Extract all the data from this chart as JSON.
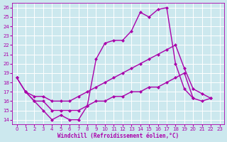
{
  "background_color": "#cce8ee",
  "grid_color": "#aadddd",
  "line_color": "#aa00aa",
  "xlabel": "Windchill (Refroidissement éolien,°C)",
  "ylim": [
    13.5,
    26.5
  ],
  "xlim": [
    -0.5,
    23.5
  ],
  "yticks": [
    14,
    15,
    16,
    17,
    18,
    19,
    20,
    21,
    22,
    23,
    24,
    25,
    26
  ],
  "xticks": [
    0,
    1,
    2,
    3,
    4,
    5,
    6,
    7,
    8,
    9,
    10,
    11,
    12,
    13,
    14,
    15,
    16,
    17,
    18,
    19,
    20,
    21,
    22,
    23
  ],
  "curve1_x": [
    0,
    1,
    2,
    3,
    4,
    5,
    6,
    7,
    8,
    9,
    10,
    11,
    12,
    13,
    14,
    15,
    16,
    17,
    18,
    19,
    20
  ],
  "curve1_y": [
    18.5,
    17.0,
    16.0,
    15.0,
    14.0,
    14.5,
    14.0,
    14.0,
    15.5,
    20.5,
    22.2,
    22.5,
    22.5,
    23.5,
    25.5,
    25.0,
    25.8,
    26.0,
    20.0,
    17.3,
    16.3
  ],
  "curve2_x": [
    0,
    1,
    2,
    3,
    4,
    5,
    6,
    7,
    8,
    9,
    10,
    11,
    12,
    13,
    14,
    15,
    16,
    17,
    18,
    19,
    20,
    21,
    22
  ],
  "curve2_y": [
    18.5,
    17.0,
    16.5,
    16.5,
    16.0,
    16.0,
    16.0,
    16.5,
    17.0,
    17.5,
    18.0,
    18.5,
    19.0,
    19.5,
    20.0,
    20.5,
    21.0,
    21.5,
    22.0,
    19.5,
    17.3,
    16.8,
    16.3
  ],
  "curve3_x": [
    1,
    2,
    3,
    4,
    5,
    6,
    7,
    8,
    9,
    10,
    11,
    12,
    13,
    14,
    15,
    16,
    17,
    18,
    19,
    20,
    21,
    22
  ],
  "curve3_y": [
    17.0,
    16.0,
    16.0,
    15.0,
    15.0,
    15.0,
    15.0,
    15.5,
    16.0,
    16.0,
    16.5,
    16.5,
    17.0,
    17.0,
    17.5,
    17.5,
    18.0,
    18.5,
    19.0,
    16.3,
    16.0,
    16.3
  ],
  "marker_size": 2.5,
  "linewidth": 1.0,
  "tick_fontsize": 5,
  "xlabel_fontsize": 5.5
}
